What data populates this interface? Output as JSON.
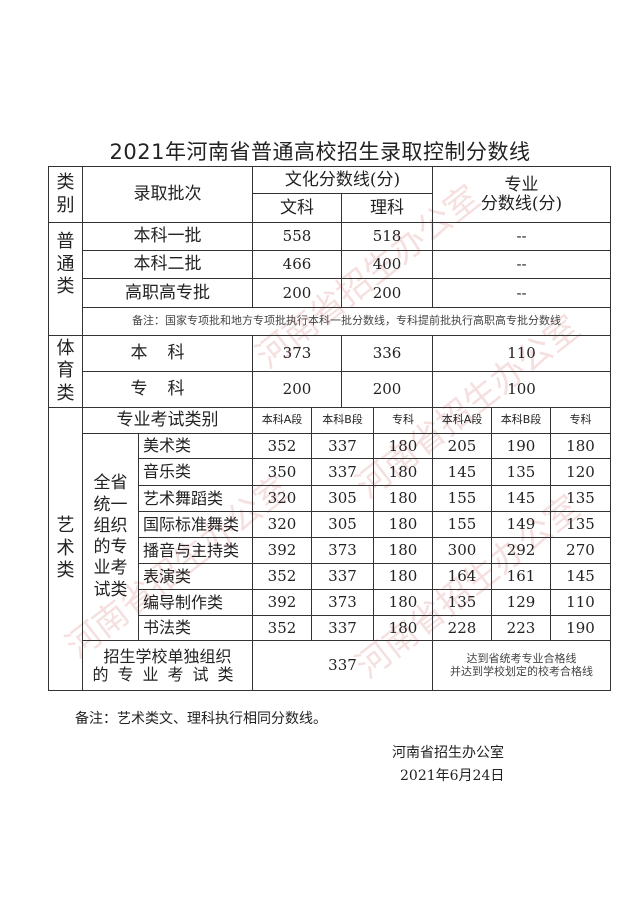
{
  "title": "2021年河南省普通高校招生录取控制分数线",
  "header": {
    "category": "类别",
    "batch": "录取批次",
    "culture": "文化分数线(分)",
    "arts": "文科",
    "science": "理科",
    "major_line1": "专业",
    "major_line2": "分数线(分)"
  },
  "general": {
    "category": "普通类",
    "rows": [
      {
        "batch": "本科一批",
        "arts": "558",
        "science": "518",
        "major": "--"
      },
      {
        "batch": "本科二批",
        "arts": "466",
        "science": "400",
        "major": "--"
      },
      {
        "batch": "高职高专批",
        "arts": "200",
        "science": "200",
        "major": "--"
      }
    ],
    "note": "备注：国家专项批和地方专项批执行本科一批分数线，专科提前批执行高职高专批分数线"
  },
  "sports": {
    "category": "体育类",
    "rows": [
      {
        "batch": "本科",
        "arts": "373",
        "science": "336",
        "major": "110"
      },
      {
        "batch": "专科",
        "arts": "200",
        "science": "200",
        "major": "100"
      }
    ]
  },
  "art": {
    "category": "艺术类",
    "header": {
      "exam_type": "专业考试类别",
      "cols": [
        "本科A段",
        "本科B段",
        "专科",
        "本科A段",
        "本科B段",
        "专科"
      ]
    },
    "unified_label": "全省统一组织的专业考试类",
    "rows": [
      {
        "name": "美术类",
        "values": [
          "352",
          "337",
          "180",
          "205",
          "190",
          "180"
        ]
      },
      {
        "name": "音乐类",
        "values": [
          "350",
          "337",
          "180",
          "145",
          "135",
          "120"
        ]
      },
      {
        "name": "艺术舞蹈类",
        "values": [
          "320",
          "305",
          "180",
          "155",
          "145",
          "135"
        ]
      },
      {
        "name": "国际标准舞类",
        "values": [
          "320",
          "305",
          "180",
          "155",
          "149",
          "135"
        ]
      },
      {
        "name": "播音与主持类",
        "values": [
          "392",
          "373",
          "180",
          "300",
          "292",
          "270"
        ]
      },
      {
        "name": "表演类",
        "values": [
          "352",
          "337",
          "180",
          "164",
          "161",
          "145"
        ]
      },
      {
        "name": "编导制作类",
        "values": [
          "392",
          "373",
          "180",
          "135",
          "129",
          "110"
        ]
      },
      {
        "name": "书法类",
        "values": [
          "352",
          "337",
          "180",
          "228",
          "223",
          "190"
        ]
      }
    ],
    "school": {
      "label_line1": "招生学校单独组织",
      "label_line2": "的专业考试类",
      "culture": "337",
      "major_line1": "达到省统考专业合格线",
      "major_line2": "并达到学校划定的校考合格线"
    }
  },
  "footer": {
    "note": "备注：艺术类文、理科执行相同分数线。",
    "issuer": "河南省招生办公室",
    "date": "2021年6月24日"
  },
  "watermark": "河南省招生办公室 Higher Education Admission Office of HeNan Province"
}
